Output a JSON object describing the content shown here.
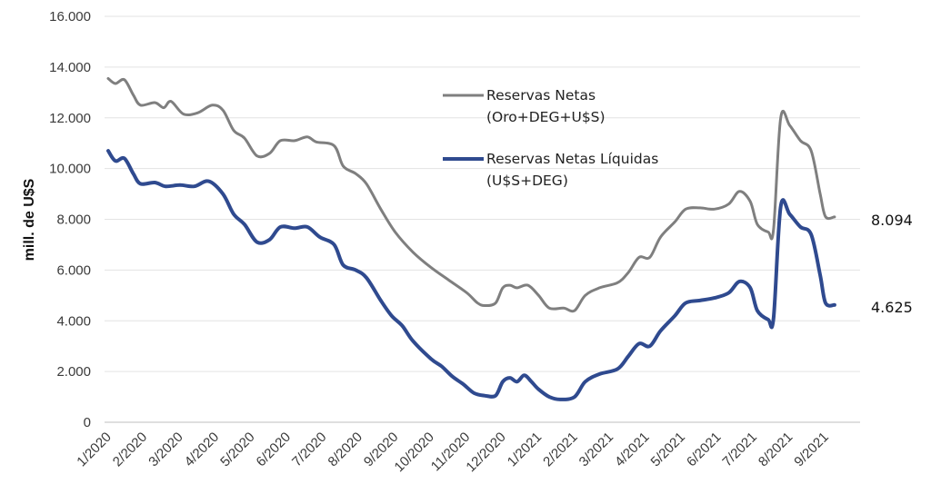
{
  "chart_data": {
    "type": "line",
    "ylabel": "mill. de U$S",
    "xlabel": "",
    "title": "",
    "ylim": [
      0,
      16000
    ],
    "yticks": [
      "0",
      "2.000",
      "4.000",
      "6.000",
      "8.000",
      "10.000",
      "12.000",
      "14.000",
      "16.000"
    ],
    "ytick_values": [
      0,
      2000,
      4000,
      6000,
      8000,
      10000,
      12000,
      14000,
      16000
    ],
    "xticks": [
      "1/2020",
      "2/2020",
      "3/2020",
      "4/2020",
      "5/2020",
      "6/2020",
      "7/2020",
      "8/2020",
      "9/2020",
      "10/2020",
      "11/2020",
      "12/2020",
      "1/2021",
      "2/2021",
      "3/2021",
      "4/2021",
      "5/2021",
      "6/2021",
      "7/2021",
      "8/2021",
      "9/2021"
    ],
    "x_unit": "month index from 1/2020 (0 = 1/2020)",
    "grid": "horizontal",
    "legend_position": "center-right",
    "series": [
      {
        "name": "Reservas Netas (Oro+DEG+U$S)",
        "legend_line1": "Reservas Netas",
        "legend_line2": "(Oro+DEG+U$S)",
        "color": "#7f7f7f",
        "end_label": "8.094",
        "points": [
          [
            0,
            13550
          ],
          [
            0.2,
            13350
          ],
          [
            0.45,
            13500
          ],
          [
            0.7,
            12900
          ],
          [
            0.9,
            12500
          ],
          [
            1.3,
            12600
          ],
          [
            1.55,
            12400
          ],
          [
            1.75,
            12650
          ],
          [
            2.1,
            12150
          ],
          [
            2.5,
            12200
          ],
          [
            2.9,
            12500
          ],
          [
            3.2,
            12300
          ],
          [
            3.5,
            11500
          ],
          [
            3.8,
            11200
          ],
          [
            4.15,
            10500
          ],
          [
            4.5,
            10600
          ],
          [
            4.8,
            11100
          ],
          [
            5.2,
            11100
          ],
          [
            5.55,
            11250
          ],
          [
            5.8,
            11050
          ],
          [
            6.3,
            10900
          ],
          [
            6.55,
            10100
          ],
          [
            6.9,
            9800
          ],
          [
            7.2,
            9400
          ],
          [
            7.6,
            8400
          ],
          [
            8.0,
            7500
          ],
          [
            8.5,
            6700
          ],
          [
            9.0,
            6100
          ],
          [
            9.5,
            5600
          ],
          [
            10.0,
            5100
          ],
          [
            10.3,
            4700
          ],
          [
            10.5,
            4600
          ],
          [
            10.8,
            4700
          ],
          [
            11.0,
            5300
          ],
          [
            11.2,
            5400
          ],
          [
            11.4,
            5300
          ],
          [
            11.7,
            5400
          ],
          [
            12.0,
            5000
          ],
          [
            12.3,
            4500
          ],
          [
            12.7,
            4500
          ],
          [
            13.0,
            4400
          ],
          [
            13.3,
            5000
          ],
          [
            13.7,
            5300
          ],
          [
            14.2,
            5500
          ],
          [
            14.5,
            5900
          ],
          [
            14.8,
            6500
          ],
          [
            15.1,
            6500
          ],
          [
            15.4,
            7300
          ],
          [
            15.8,
            7900
          ],
          [
            16.1,
            8400
          ],
          [
            16.5,
            8450
          ],
          [
            16.9,
            8400
          ],
          [
            17.3,
            8600
          ],
          [
            17.6,
            9100
          ],
          [
            17.9,
            8700
          ],
          [
            18.1,
            7800
          ],
          [
            18.4,
            7500
          ],
          [
            18.55,
            7600
          ],
          [
            18.75,
            12000
          ],
          [
            19.0,
            11700
          ],
          [
            19.3,
            11100
          ],
          [
            19.6,
            10700
          ],
          [
            19.85,
            9000
          ],
          [
            20.0,
            8100
          ],
          [
            20.25,
            8094
          ]
        ]
      },
      {
        "name": "Reservas Netas Líquidas (U$S+DEG)",
        "legend_line1": "Reservas Netas Líquidas",
        "legend_line2": "(U$S+DEG)",
        "color": "#2f4a8f",
        "end_label": "4.625",
        "points": [
          [
            0,
            10700
          ],
          [
            0.2,
            10300
          ],
          [
            0.45,
            10400
          ],
          [
            0.7,
            9800
          ],
          [
            0.9,
            9400
          ],
          [
            1.3,
            9450
          ],
          [
            1.6,
            9300
          ],
          [
            2.0,
            9350
          ],
          [
            2.4,
            9300
          ],
          [
            2.8,
            9500
          ],
          [
            3.2,
            9000
          ],
          [
            3.5,
            8200
          ],
          [
            3.8,
            7800
          ],
          [
            4.15,
            7100
          ],
          [
            4.5,
            7200
          ],
          [
            4.8,
            7700
          ],
          [
            5.2,
            7650
          ],
          [
            5.55,
            7700
          ],
          [
            5.9,
            7300
          ],
          [
            6.3,
            7000
          ],
          [
            6.55,
            6200
          ],
          [
            6.9,
            6000
          ],
          [
            7.2,
            5700
          ],
          [
            7.6,
            4800
          ],
          [
            7.9,
            4200
          ],
          [
            8.2,
            3800
          ],
          [
            8.5,
            3200
          ],
          [
            9.0,
            2500
          ],
          [
            9.3,
            2200
          ],
          [
            9.6,
            1800
          ],
          [
            9.9,
            1500
          ],
          [
            10.2,
            1150
          ],
          [
            10.5,
            1050
          ],
          [
            10.8,
            1050
          ],
          [
            11.0,
            1600
          ],
          [
            11.2,
            1750
          ],
          [
            11.4,
            1600
          ],
          [
            11.6,
            1850
          ],
          [
            11.8,
            1600
          ],
          [
            12.0,
            1300
          ],
          [
            12.3,
            1000
          ],
          [
            12.6,
            900
          ],
          [
            13.0,
            1000
          ],
          [
            13.3,
            1600
          ],
          [
            13.7,
            1900
          ],
          [
            14.2,
            2100
          ],
          [
            14.5,
            2600
          ],
          [
            14.8,
            3100
          ],
          [
            15.1,
            3000
          ],
          [
            15.4,
            3600
          ],
          [
            15.8,
            4200
          ],
          [
            16.1,
            4700
          ],
          [
            16.5,
            4800
          ],
          [
            16.9,
            4900
          ],
          [
            17.3,
            5100
          ],
          [
            17.6,
            5550
          ],
          [
            17.9,
            5300
          ],
          [
            18.1,
            4400
          ],
          [
            18.4,
            4050
          ],
          [
            18.55,
            4100
          ],
          [
            18.75,
            8500
          ],
          [
            19.0,
            8200
          ],
          [
            19.3,
            7700
          ],
          [
            19.6,
            7400
          ],
          [
            19.85,
            5800
          ],
          [
            20.0,
            4700
          ],
          [
            20.25,
            4625
          ]
        ]
      }
    ]
  }
}
